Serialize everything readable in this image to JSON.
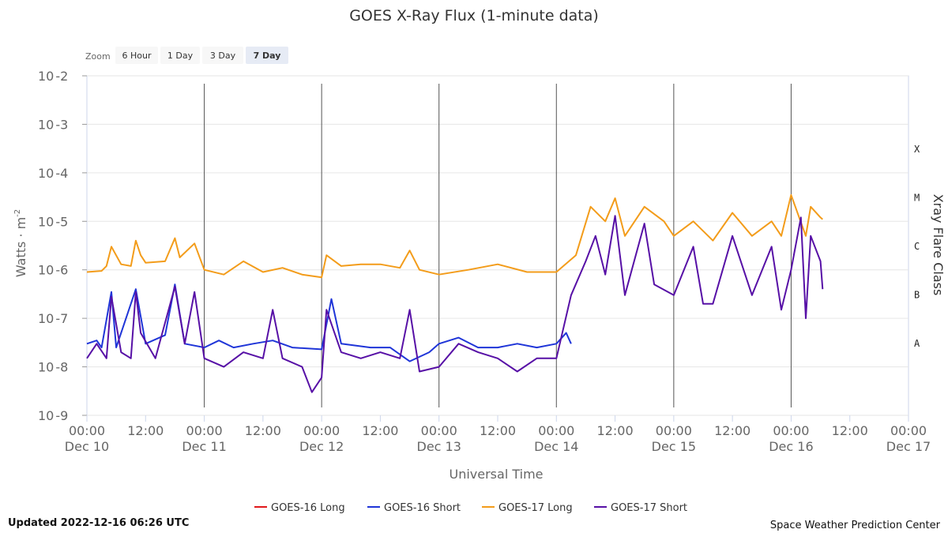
{
  "title": "GOES X-Ray Flux (1-minute data)",
  "zoom": {
    "label": "Zoom",
    "buttons": [
      {
        "label": "6 Hour",
        "active": false
      },
      {
        "label": "1 Day",
        "active": false
      },
      {
        "label": "3 Day",
        "active": false
      },
      {
        "label": "7 Day",
        "active": true
      }
    ]
  },
  "footer": {
    "updated": "Updated 2022-12-16 06:26 UTC",
    "credit": "Space Weather Prediction Center"
  },
  "colors": {
    "goes16_long": "#e0181b",
    "goes16_short": "#1f35d8",
    "goes17_long": "#f39c1a",
    "goes17_short": "#5710a6",
    "vline": "#555555",
    "grid": "#e6e6e6",
    "axis_text": "#666666"
  },
  "chart_data": {
    "type": "line",
    "xlabel": "Universal Time",
    "ylabel": "Watts · m",
    "ylabel_sup": "-2",
    "y2label": "Xray Flare Class",
    "y_scale": "log",
    "ylim": [
      1e-09,
      0.01
    ],
    "xlim": [
      "2022-12-10 00:00",
      "2022-12-17 00:00"
    ],
    "y_ticks": [
      {
        "base": "10",
        "exp": "-2",
        "value": 0.01
      },
      {
        "base": "10",
        "exp": "-3",
        "value": 0.001
      },
      {
        "base": "10",
        "exp": "-4",
        "value": 0.0001
      },
      {
        "base": "10",
        "exp": "-5",
        "value": 1e-05
      },
      {
        "base": "10",
        "exp": "-6",
        "value": 1e-06
      },
      {
        "base": "10",
        "exp": "-7",
        "value": 1e-07
      },
      {
        "base": "10",
        "exp": "-8",
        "value": 1e-08
      },
      {
        "base": "10",
        "exp": "-9",
        "value": 1e-09
      }
    ],
    "x_ticks": [
      {
        "time": "00:00",
        "date": "Dec 10",
        "value": "2022-12-10 00:00"
      },
      {
        "time": "12:00",
        "date": "",
        "value": "2022-12-10 12:00"
      },
      {
        "time": "00:00",
        "date": "Dec 11",
        "value": "2022-12-11 00:00"
      },
      {
        "time": "12:00",
        "date": "",
        "value": "2022-12-11 12:00"
      },
      {
        "time": "00:00",
        "date": "Dec 12",
        "value": "2022-12-12 00:00"
      },
      {
        "time": "12:00",
        "date": "",
        "value": "2022-12-12 12:00"
      },
      {
        "time": "00:00",
        "date": "Dec 13",
        "value": "2022-12-13 00:00"
      },
      {
        "time": "12:00",
        "date": "",
        "value": "2022-12-13 12:00"
      },
      {
        "time": "00:00",
        "date": "Dec 14",
        "value": "2022-12-14 00:00"
      },
      {
        "time": "12:00",
        "date": "",
        "value": "2022-12-14 12:00"
      },
      {
        "time": "00:00",
        "date": "Dec 15",
        "value": "2022-12-15 00:00"
      },
      {
        "time": "12:00",
        "date": "",
        "value": "2022-12-15 12:00"
      },
      {
        "time": "00:00",
        "date": "Dec 16",
        "value": "2022-12-16 00:00"
      },
      {
        "time": "12:00",
        "date": "",
        "value": "2022-12-16 12:00"
      },
      {
        "time": "00:00",
        "date": "Dec 17",
        "value": "2022-12-17 00:00"
      }
    ],
    "day_lines": [
      "2022-12-11 00:00",
      "2022-12-12 00:00",
      "2022-12-13 00:00",
      "2022-12-14 00:00",
      "2022-12-15 00:00",
      "2022-12-16 00:00"
    ],
    "flare_classes": [
      {
        "label": "X",
        "value": 0.0001
      },
      {
        "label": "M",
        "value": 1e-05
      },
      {
        "label": "C",
        "value": 1e-06
      },
      {
        "label": "B",
        "value": 1e-07
      },
      {
        "label": "A",
        "value": 1e-08
      }
    ],
    "legend_position": "bottom-center",
    "series": [
      {
        "name": "GOES-16 Long",
        "color_key": "goes16_long",
        "points": []
      },
      {
        "name": "GOES-16 Short",
        "color_key": "goes16_short",
        "points": [
          [
            "2022-12-10 00:00",
            3e-08
          ],
          [
            "2022-12-10 02:00",
            3.5e-08
          ],
          [
            "2022-12-10 03:00",
            2.5e-08
          ],
          [
            "2022-12-10 05:00",
            3.5e-07
          ],
          [
            "2022-12-10 06:00",
            2.5e-08
          ],
          [
            "2022-12-10 10:00",
            4e-07
          ],
          [
            "2022-12-10 12:00",
            3e-08
          ],
          [
            "2022-12-10 16:00",
            4.5e-08
          ],
          [
            "2022-12-10 18:00",
            5e-07
          ],
          [
            "2022-12-10 20:00",
            3e-08
          ],
          [
            "2022-12-11 00:00",
            2.5e-08
          ],
          [
            "2022-12-11 03:00",
            3.5e-08
          ],
          [
            "2022-12-11 06:00",
            2.5e-08
          ],
          [
            "2022-12-11 10:00",
            3e-08
          ],
          [
            "2022-12-11 14:00",
            3.5e-08
          ],
          [
            "2022-12-11 18:00",
            2.5e-08
          ],
          [
            "2022-12-12 00:00",
            2.3e-08
          ],
          [
            "2022-12-12 02:00",
            2.5e-07
          ],
          [
            "2022-12-12 04:00",
            3e-08
          ],
          [
            "2022-12-12 10:00",
            2.5e-08
          ],
          [
            "2022-12-12 14:00",
            2.5e-08
          ],
          [
            "2022-12-12 18:00",
            1.3e-08
          ],
          [
            "2022-12-12 22:00",
            2e-08
          ],
          [
            "2022-12-13 00:00",
            3e-08
          ],
          [
            "2022-12-13 04:00",
            4e-08
          ],
          [
            "2022-12-13 08:00",
            2.5e-08
          ],
          [
            "2022-12-13 12:00",
            2.5e-08
          ],
          [
            "2022-12-13 16:00",
            3e-08
          ],
          [
            "2022-12-13 20:00",
            2.5e-08
          ],
          [
            "2022-12-14 00:00",
            3e-08
          ],
          [
            "2022-12-14 02:00",
            5e-08
          ],
          [
            "2022-12-14 03:00",
            3e-08
          ]
        ]
      },
      {
        "name": "GOES-17 Long",
        "color_key": "goes17_long",
        "points": [
          [
            "2022-12-10 00:00",
            9e-07
          ],
          [
            "2022-12-10 03:00",
            9.5e-07
          ],
          [
            "2022-12-10 04:00",
            1.2e-06
          ],
          [
            "2022-12-10 05:00",
            3e-06
          ],
          [
            "2022-12-10 07:00",
            1.3e-06
          ],
          [
            "2022-12-10 09:00",
            1.2e-06
          ],
          [
            "2022-12-10 10:00",
            4e-06
          ],
          [
            "2022-12-10 11:00",
            2e-06
          ],
          [
            "2022-12-10 12:00",
            1.4e-06
          ],
          [
            "2022-12-10 16:00",
            1.5e-06
          ],
          [
            "2022-12-10 18:00",
            4.5e-06
          ],
          [
            "2022-12-10 19:00",
            1.8e-06
          ],
          [
            "2022-12-10 22:00",
            3.5e-06
          ],
          [
            "2022-12-11 00:00",
            1e-06
          ],
          [
            "2022-12-11 04:00",
            8e-07
          ],
          [
            "2022-12-11 08:00",
            1.5e-06
          ],
          [
            "2022-12-11 12:00",
            9e-07
          ],
          [
            "2022-12-11 16:00",
            1.1e-06
          ],
          [
            "2022-12-11 20:00",
            8e-07
          ],
          [
            "2022-12-12 00:00",
            7e-07
          ],
          [
            "2022-12-12 01:00",
            2e-06
          ],
          [
            "2022-12-12 04:00",
            1.2e-06
          ],
          [
            "2022-12-12 08:00",
            1.3e-06
          ],
          [
            "2022-12-12 12:00",
            1.3e-06
          ],
          [
            "2022-12-12 16:00",
            1.1e-06
          ],
          [
            "2022-12-12 18:00",
            2.5e-06
          ],
          [
            "2022-12-12 20:00",
            1e-06
          ],
          [
            "2022-12-13 00:00",
            8e-07
          ],
          [
            "2022-12-13 06:00",
            1e-06
          ],
          [
            "2022-12-13 12:00",
            1.3e-06
          ],
          [
            "2022-12-13 18:00",
            9e-07
          ],
          [
            "2022-12-14 00:00",
            9e-07
          ],
          [
            "2022-12-14 04:00",
            2e-06
          ],
          [
            "2022-12-14 07:00",
            2e-05
          ],
          [
            "2022-12-14 10:00",
            1e-05
          ],
          [
            "2022-12-14 12:00",
            3e-05
          ],
          [
            "2022-12-14 14:00",
            5e-06
          ],
          [
            "2022-12-14 18:00",
            2e-05
          ],
          [
            "2022-12-14 22:00",
            1e-05
          ],
          [
            "2022-12-15 00:00",
            5e-06
          ],
          [
            "2022-12-15 04:00",
            1e-05
          ],
          [
            "2022-12-15 08:00",
            4e-06
          ],
          [
            "2022-12-15 12:00",
            1.5e-05
          ],
          [
            "2022-12-15 16:00",
            5e-06
          ],
          [
            "2022-12-15 20:00",
            1e-05
          ],
          [
            "2022-12-15 22:00",
            5e-06
          ],
          [
            "2022-12-16 00:00",
            3.5e-05
          ],
          [
            "2022-12-16 03:00",
            5e-06
          ],
          [
            "2022-12-16 04:00",
            2e-05
          ],
          [
            "2022-12-16 06:00",
            1.2e-05
          ],
          [
            "2022-12-16 06:26",
            1.1e-05
          ]
        ]
      },
      {
        "name": "GOES-17 Short",
        "color_key": "goes17_short",
        "points": [
          [
            "2022-12-10 00:00",
            1.5e-08
          ],
          [
            "2022-12-10 02:00",
            3e-08
          ],
          [
            "2022-12-10 04:00",
            1.5e-08
          ],
          [
            "2022-12-10 05:00",
            2.8e-07
          ],
          [
            "2022-12-10 07:00",
            2e-08
          ],
          [
            "2022-12-10 09:00",
            1.5e-08
          ],
          [
            "2022-12-10 10:00",
            3.5e-07
          ],
          [
            "2022-12-10 11:00",
            5e-08
          ],
          [
            "2022-12-10 14:00",
            1.5e-08
          ],
          [
            "2022-12-10 18:00",
            4.5e-07
          ],
          [
            "2022-12-10 20:00",
            3e-08
          ],
          [
            "2022-12-10 22:00",
            3.5e-07
          ],
          [
            "2022-12-11 00:00",
            1.5e-08
          ],
          [
            "2022-12-11 04:00",
            1e-08
          ],
          [
            "2022-12-11 08:00",
            2e-08
          ],
          [
            "2022-12-11 12:00",
            1.5e-08
          ],
          [
            "2022-12-11 14:00",
            1.5e-07
          ],
          [
            "2022-12-11 16:00",
            1.5e-08
          ],
          [
            "2022-12-11 20:00",
            1e-08
          ],
          [
            "2022-12-11 22:00",
            3e-09
          ],
          [
            "2022-12-12 00:00",
            6e-09
          ],
          [
            "2022-12-12 01:00",
            1.5e-07
          ],
          [
            "2022-12-12 04:00",
            2e-08
          ],
          [
            "2022-12-12 08:00",
            1.5e-08
          ],
          [
            "2022-12-12 12:00",
            2e-08
          ],
          [
            "2022-12-12 16:00",
            1.5e-08
          ],
          [
            "2022-12-12 18:00",
            1.5e-07
          ],
          [
            "2022-12-12 20:00",
            8e-09
          ],
          [
            "2022-12-13 00:00",
            1e-08
          ],
          [
            "2022-12-13 04:00",
            3e-08
          ],
          [
            "2022-12-13 08:00",
            2e-08
          ],
          [
            "2022-12-13 12:00",
            1.5e-08
          ],
          [
            "2022-12-13 16:00",
            8e-09
          ],
          [
            "2022-12-13 20:00",
            1.5e-08
          ],
          [
            "2022-12-14 00:00",
            1.5e-08
          ],
          [
            "2022-12-14 03:00",
            3e-07
          ],
          [
            "2022-12-14 06:00",
            1.5e-06
          ],
          [
            "2022-12-14 08:00",
            5e-06
          ],
          [
            "2022-12-14 10:00",
            8e-07
          ],
          [
            "2022-12-14 12:00",
            1.3e-05
          ],
          [
            "2022-12-14 14:00",
            3e-07
          ],
          [
            "2022-12-14 18:00",
            9e-06
          ],
          [
            "2022-12-14 20:00",
            5e-07
          ],
          [
            "2022-12-15 00:00",
            3e-07
          ],
          [
            "2022-12-15 04:00",
            3e-06
          ],
          [
            "2022-12-15 06:00",
            2e-07
          ],
          [
            "2022-12-15 08:00",
            2e-07
          ],
          [
            "2022-12-15 12:00",
            5e-06
          ],
          [
            "2022-12-15 16:00",
            3e-07
          ],
          [
            "2022-12-15 20:00",
            3e-06
          ],
          [
            "2022-12-15 22:00",
            1.5e-07
          ],
          [
            "2022-12-16 00:00",
            1e-06
          ],
          [
            "2022-12-16 02:00",
            1.2e-05
          ],
          [
            "2022-12-16 03:00",
            1e-07
          ],
          [
            "2022-12-16 04:00",
            5e-06
          ],
          [
            "2022-12-16 06:00",
            1.5e-06
          ],
          [
            "2022-12-16 06:26",
            4e-07
          ]
        ]
      }
    ]
  }
}
